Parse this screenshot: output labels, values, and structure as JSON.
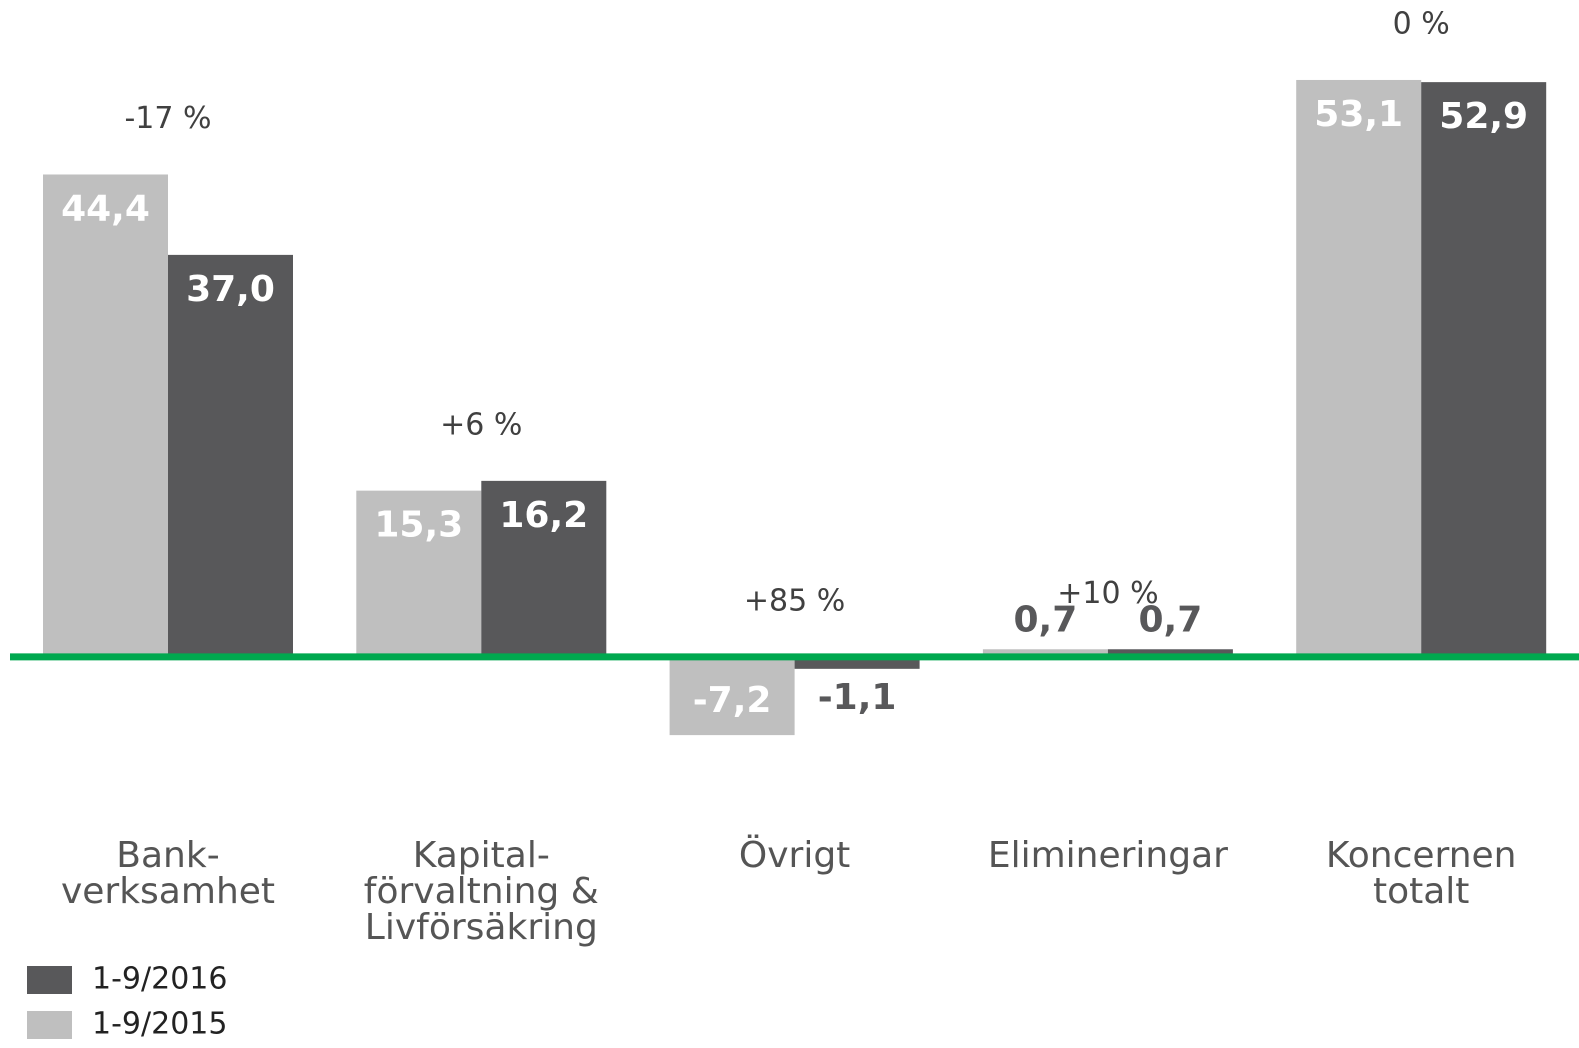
{
  "chart_data": {
    "type": "bar",
    "categories": [
      "Bank-\nverksamhet",
      "Kapital-\nförvaltning &\nLivförsäkring",
      "Övrigt",
      "Elimineringar",
      "Koncernen\ntotalt"
    ],
    "series": [
      {
        "name": "1-9/2015",
        "color": "#bfbfbf",
        "values": [
          44.4,
          15.3,
          -7.2,
          0.7,
          53.1
        ],
        "value_labels": [
          "44,4",
          "15,3",
          "-7,2",
          "0,7",
          "53,1"
        ]
      },
      {
        "name": "1-9/2016",
        "color": "#58585a",
        "values": [
          37.0,
          16.2,
          -1.1,
          0.7,
          52.9
        ],
        "value_labels": [
          "37,0",
          "16,2",
          "-1,1",
          "0,7",
          "52,9"
        ]
      }
    ],
    "annotations": [
      "-17 %",
      "+6 %",
      "+85 %",
      "+10 %",
      "0 %"
    ],
    "ylim": [
      -36,
      60
    ],
    "baseline_color": "#00a84f",
    "legend": "bottom-left"
  }
}
